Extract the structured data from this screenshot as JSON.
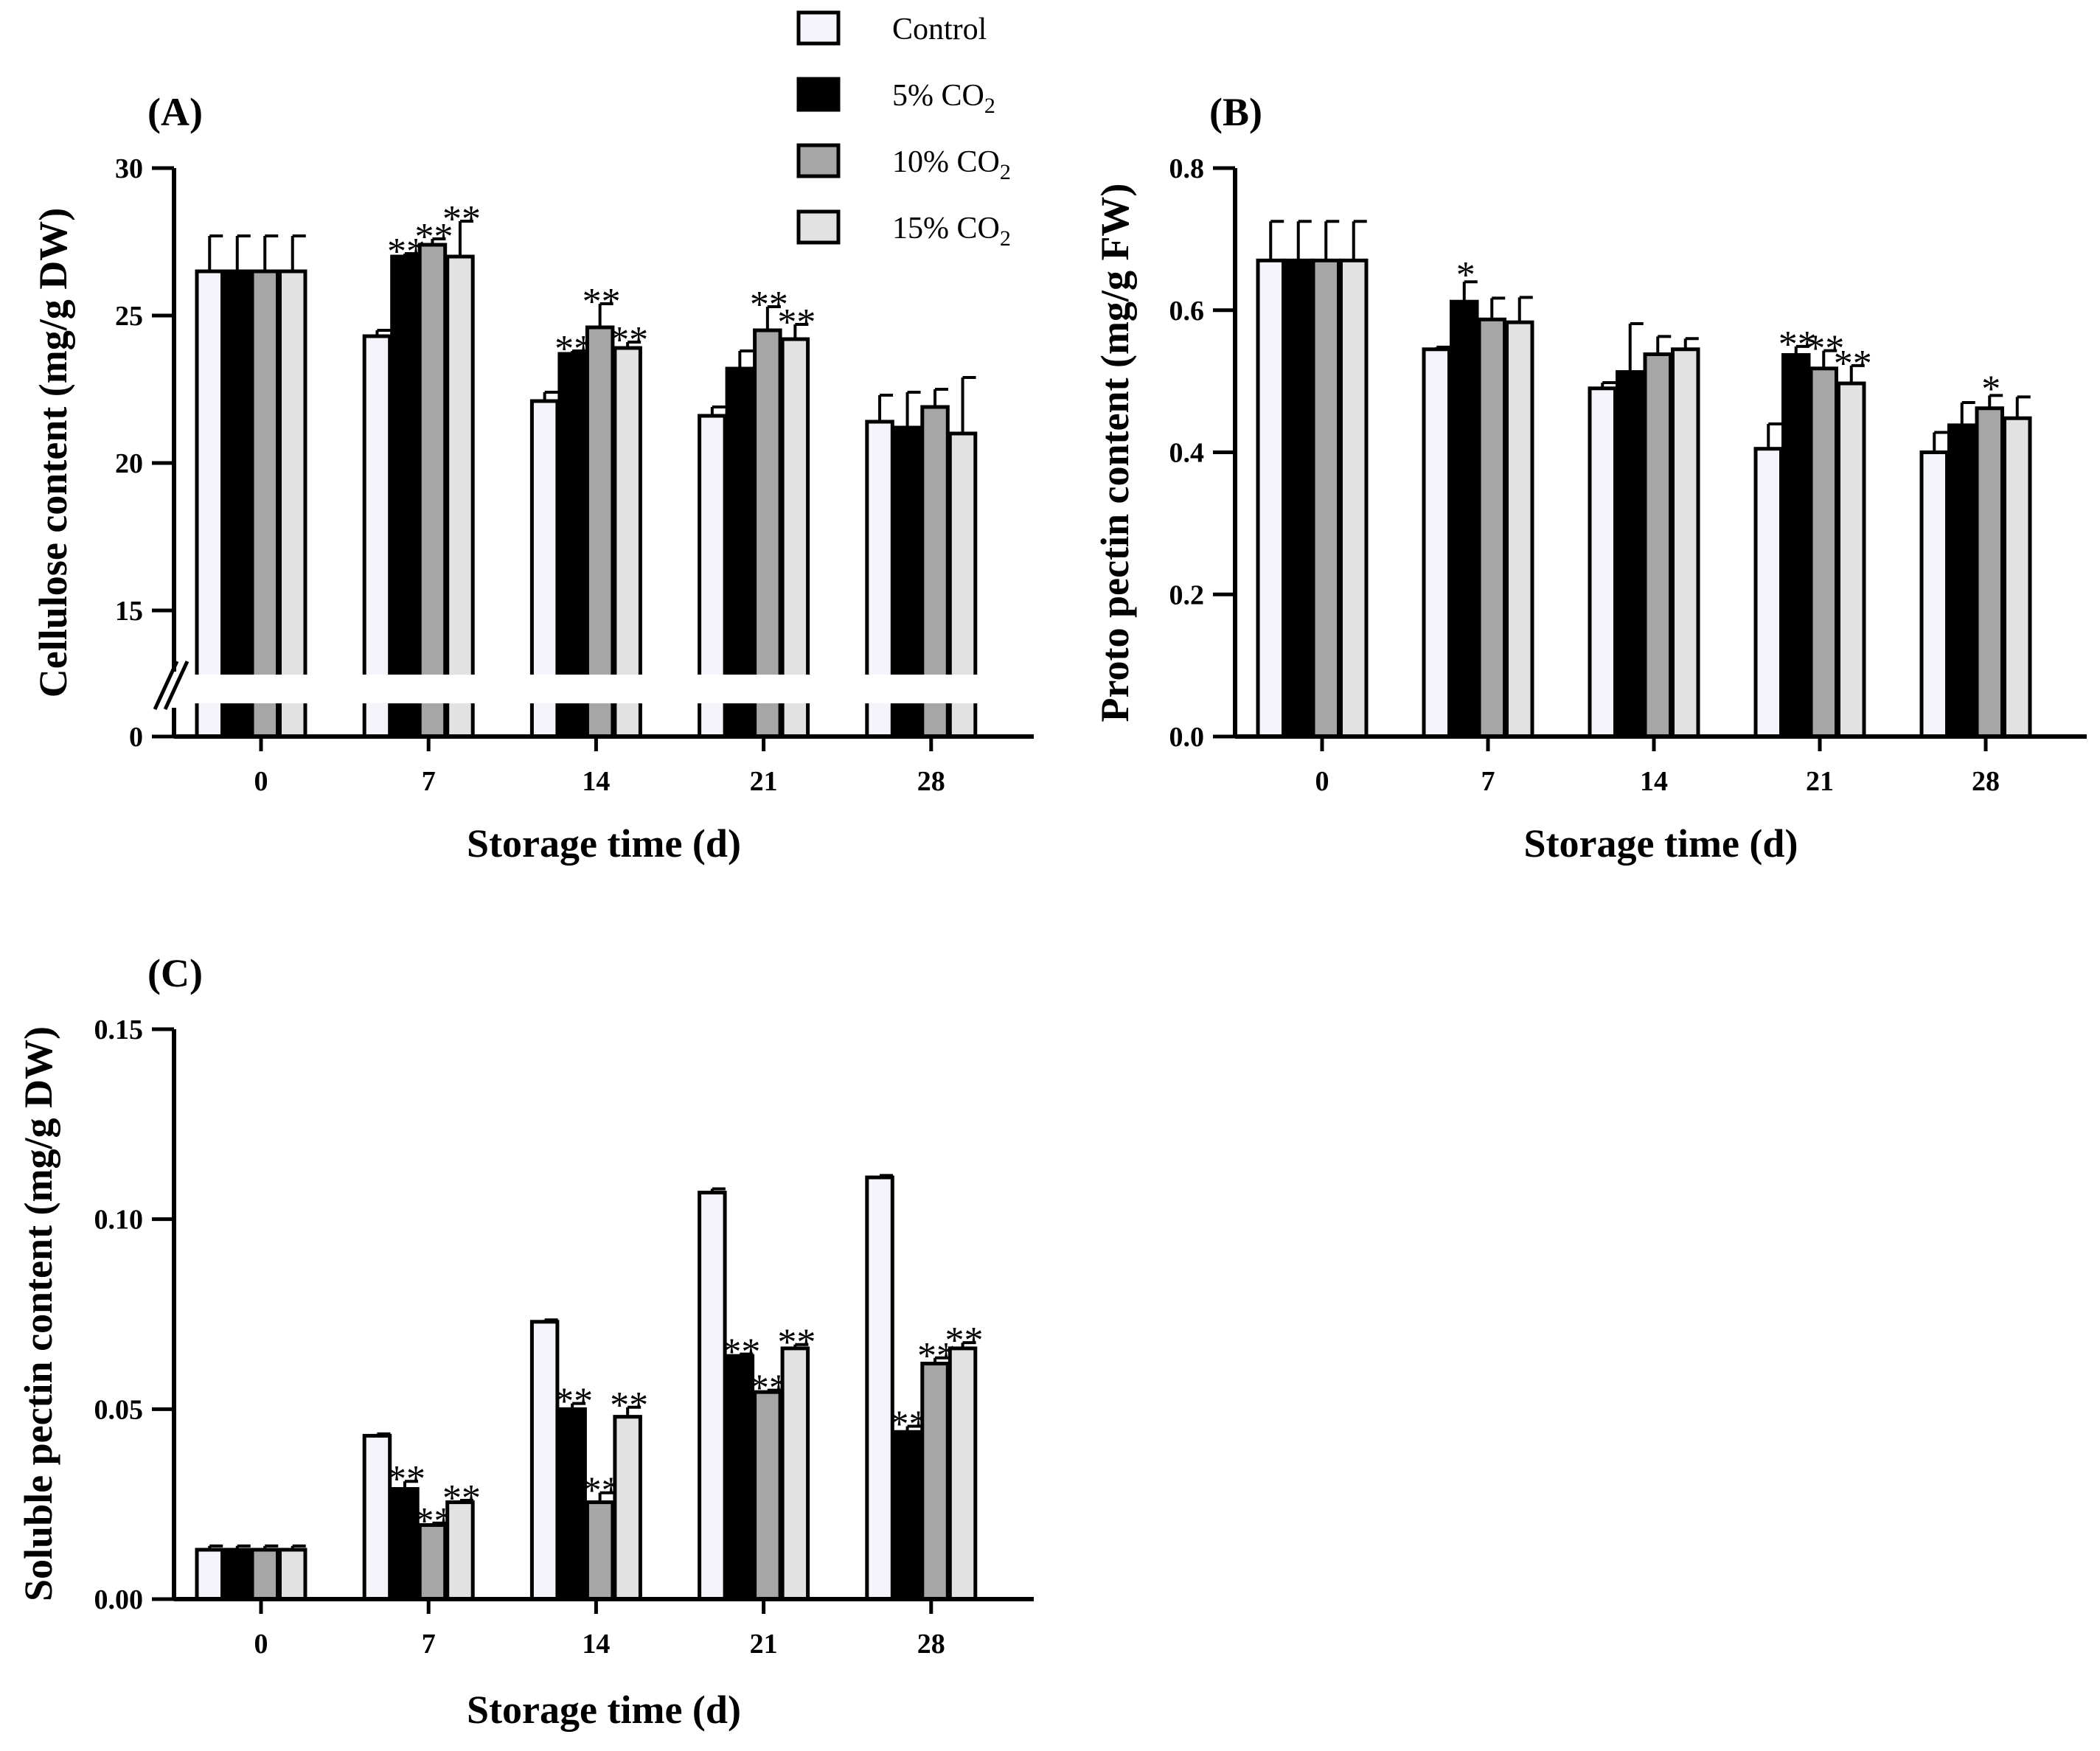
{
  "legend": [
    {
      "name": "Control",
      "color": "#F4F4FA"
    },
    {
      "name": "5% CO2",
      "color": "#000000"
    },
    {
      "name": "10% CO2",
      "color": "#A6A6A6"
    },
    {
      "name": "15% CO2",
      "color": "#E2E2E2"
    }
  ],
  "chart_data": [
    {
      "type": "bar",
      "panel": "(A)",
      "xlabel": "Storage time (d)",
      "ylabel": "Cellulose content (mg/g DW)",
      "categories": [
        "0",
        "7",
        "14",
        "21",
        "28"
      ],
      "ylim": [
        0,
        30
      ],
      "axis_break": [
        0,
        13
      ],
      "yticks": [
        0,
        15,
        20,
        25,
        30
      ],
      "series": [
        {
          "name": "Control",
          "values": [
            26.5,
            24.3,
            22.1,
            21.6,
            21.4
          ],
          "errors": [
            1.2,
            0.2,
            0.3,
            0.3,
            0.9
          ],
          "sig": [
            "",
            "",
            "",
            "",
            ""
          ]
        },
        {
          "name": "5% CO2",
          "values": [
            26.5,
            27.0,
            23.7,
            23.2,
            21.2
          ],
          "errors": [
            1.2,
            0.1,
            0.1,
            0.6,
            1.2
          ],
          "sig": [
            "",
            "**",
            "**",
            "",
            ""
          ]
        },
        {
          "name": "10% CO2",
          "values": [
            26.5,
            27.4,
            24.6,
            24.5,
            21.9
          ],
          "errors": [
            1.2,
            0.2,
            0.8,
            0.8,
            0.6
          ],
          "sig": [
            "",
            "**",
            "**",
            "**",
            ""
          ]
        },
        {
          "name": "15% CO2",
          "values": [
            26.5,
            27.0,
            23.9,
            24.2,
            21.0
          ],
          "errors": [
            1.2,
            1.2,
            0.2,
            0.5,
            1.9
          ],
          "sig": [
            "",
            "**",
            "**",
            "**",
            ""
          ]
        }
      ]
    },
    {
      "type": "bar",
      "panel": "(B)",
      "xlabel": "Storage time (d)",
      "ylabel": "Proto pectin content (mg/g FW)",
      "categories": [
        "0",
        "7",
        "14",
        "21",
        "28"
      ],
      "ylim": [
        0,
        0.8
      ],
      "yticks": [
        "0.0",
        "0.2",
        "0.4",
        "0.6",
        "0.8"
      ],
      "series": [
        {
          "name": "Control",
          "values": [
            0.67,
            0.545,
            0.49,
            0.405,
            0.4
          ],
          "errors": [
            0.055,
            0.003,
            0.008,
            0.035,
            0.028
          ],
          "sig": [
            "",
            "",
            "",
            "",
            ""
          ]
        },
        {
          "name": "5% CO2",
          "values": [
            0.67,
            0.612,
            0.513,
            0.537,
            0.438
          ],
          "errors": [
            0.055,
            0.028,
            0.068,
            0.012,
            0.032
          ],
          "sig": [
            "",
            "*",
            "",
            "**",
            ""
          ]
        },
        {
          "name": "10% CO2",
          "values": [
            0.67,
            0.587,
            0.538,
            0.518,
            0.462
          ],
          "errors": [
            0.055,
            0.03,
            0.025,
            0.025,
            0.018
          ],
          "sig": [
            "",
            "",
            "",
            "**",
            "*"
          ]
        },
        {
          "name": "15% CO2",
          "values": [
            0.67,
            0.583,
            0.545,
            0.497,
            0.448
          ],
          "errors": [
            0.055,
            0.035,
            0.015,
            0.025,
            0.03
          ],
          "sig": [
            "",
            "",
            "",
            "**",
            ""
          ]
        }
      ]
    },
    {
      "type": "bar",
      "panel": "(C)",
      "xlabel": "Storage time (d)",
      "ylabel": "Soluble pectin content (mg/g DW)",
      "categories": [
        "0",
        "7",
        "14",
        "21",
        "28"
      ],
      "ylim": [
        0,
        0.15
      ],
      "yticks": [
        "0.00",
        "0.05",
        "0.10",
        "0.15"
      ],
      "series": [
        {
          "name": "Control",
          "values": [
            0.013,
            0.043,
            0.073,
            0.107,
            0.111
          ],
          "errors": [
            0.001,
            0.0005,
            0.0005,
            0.001,
            0.0005
          ],
          "sig": [
            "",
            "",
            "",
            "",
            ""
          ]
        },
        {
          "name": "5% CO2",
          "values": [
            0.013,
            0.029,
            0.05,
            0.064,
            0.044
          ],
          "errors": [
            0.001,
            0.002,
            0.0015,
            0.0005,
            0.0015
          ],
          "sig": [
            "",
            "**",
            "**",
            "**",
            "**"
          ]
        },
        {
          "name": "10% CO2",
          "values": [
            0.013,
            0.0195,
            0.0255,
            0.0545,
            0.062
          ],
          "errors": [
            0.001,
            0.0005,
            0.0025,
            0.0005,
            0.0015
          ],
          "sig": [
            "",
            "**",
            "**",
            "**",
            "**"
          ]
        },
        {
          "name": "15% CO2",
          "values": [
            0.013,
            0.0255,
            0.048,
            0.066,
            0.066
          ],
          "errors": [
            0.001,
            0.0005,
            0.0025,
            0.001,
            0.0015
          ],
          "sig": [
            "",
            "**",
            "**",
            "**",
            "**"
          ]
        }
      ]
    }
  ]
}
